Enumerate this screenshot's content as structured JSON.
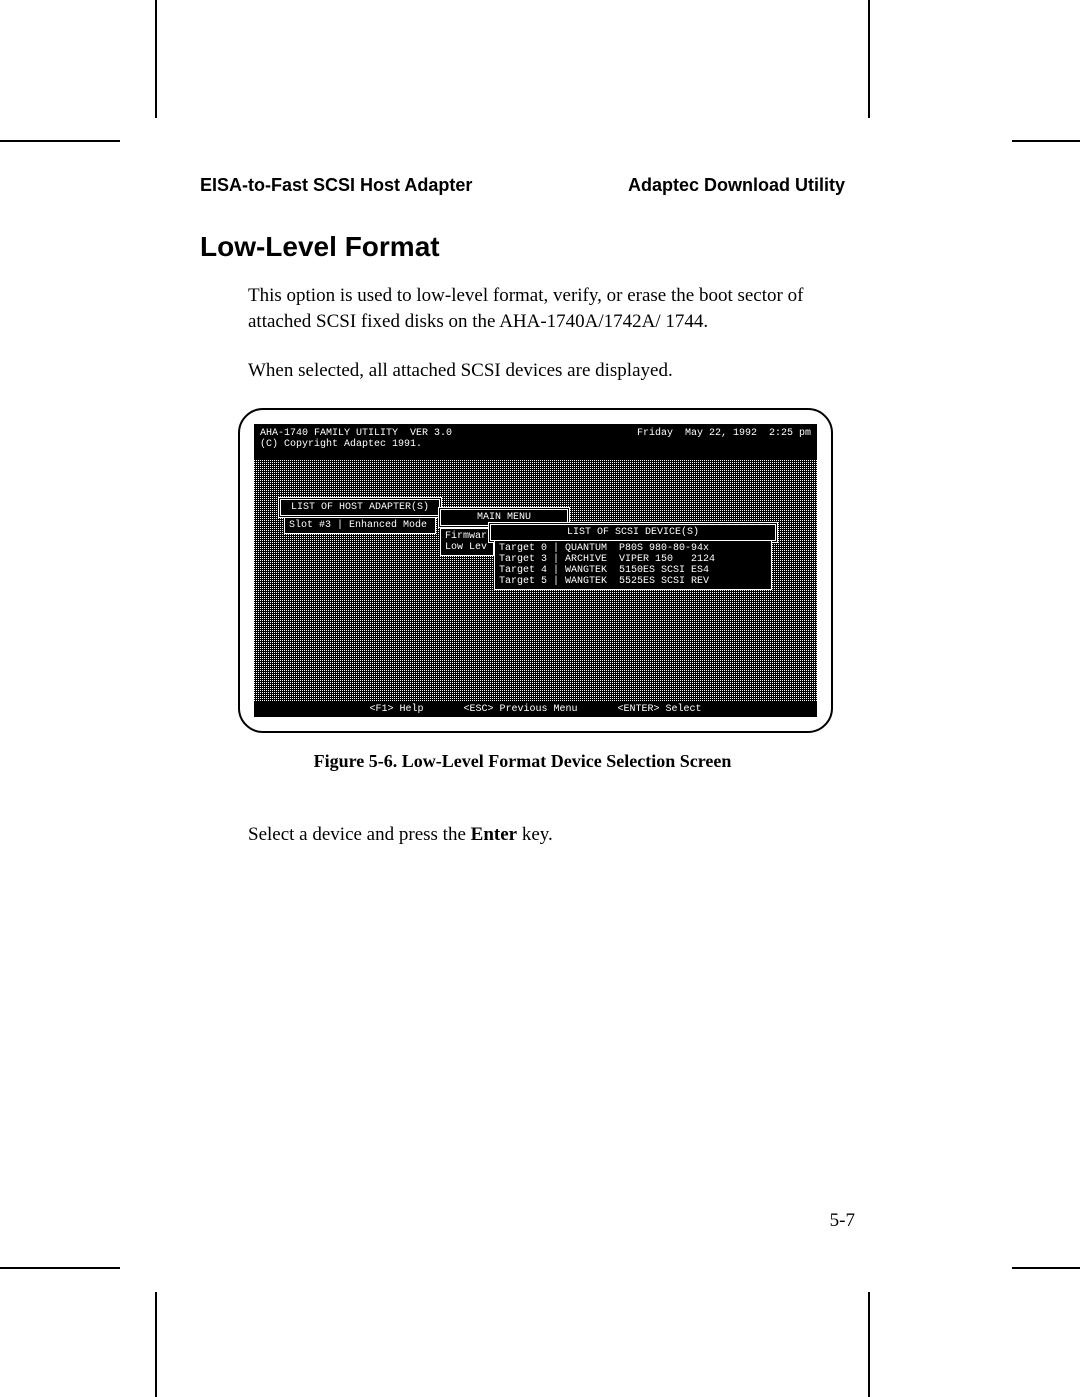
{
  "header": {
    "left": "EISA-to-Fast SCSI Host Adapter",
    "right": "Adaptec Download Utility"
  },
  "section_title": "Low-Level Format",
  "paragraphs": {
    "p1": "This option is used to low-level format, verify, or erase the boot sector of attached SCSI fixed disks on the AHA-1740A/1742A/ 1744.",
    "p2": "When selected, all attached SCSI devices are displayed.",
    "p3_prefix": "Select a device and press the ",
    "p3_bold": "Enter",
    "p3_suffix": " key."
  },
  "figure_caption": "Figure 5-6.  Low-Level Format Device Selection Screen",
  "page_number": "5-7",
  "dos": {
    "title_line": "AHA-1740 FAMILY UTILITY  VER 3.0",
    "copyright": "(C) Copyright Adaptec 1991.",
    "datetime": "Friday  May 22, 1992  2:25 pm",
    "adapters_title": "LIST OF HOST ADAPTER(S)",
    "adapter_row": "Slot #3 | Enhanced Mode",
    "main_menu": "MAIN MENU",
    "menu_items": {
      "a": "Firmwar",
      "b": "Low Lev"
    },
    "devices_title": "LIST OF SCSI DEVICE(S)",
    "devices": [
      "Target 0 | QUANTUM  P80S 980-80-94x",
      "Target 3 | ARCHIVE  VIPER 150   2124",
      "Target 4 | WANGTEK  5150ES SCSI ES4",
      "Target 5 | WANGTEK  5525ES SCSI REV"
    ],
    "footer": {
      "help": "<F1> Help",
      "prev": "<ESC> Previous Menu",
      "select": "<ENTER> Select"
    }
  },
  "colors": {
    "page_bg": "#ffffff",
    "text": "#000000",
    "screen_bg": "#000000",
    "screen_fg": "#ffffff"
  }
}
